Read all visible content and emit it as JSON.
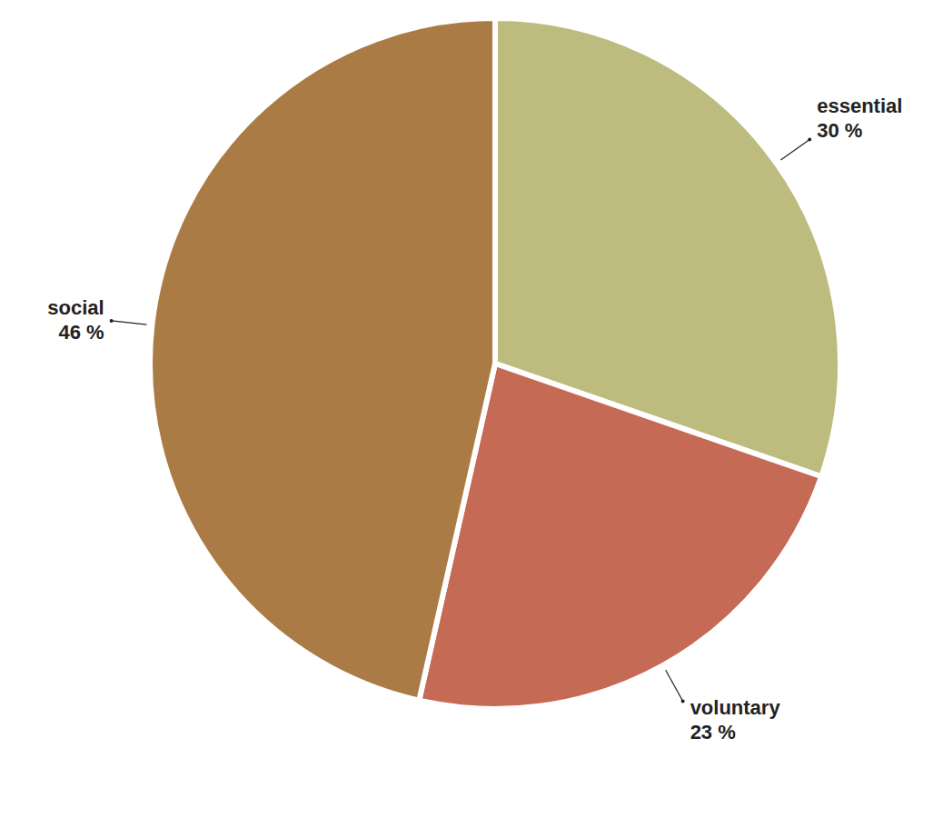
{
  "chart_data": {
    "type": "pie",
    "categories": [
      "essential",
      "voluntary",
      "social"
    ],
    "values": [
      30,
      23,
      46
    ],
    "value_labels": [
      "30 %",
      "23 %",
      "46 %"
    ],
    "colors": [
      "#bdbb7e",
      "#c46a55",
      "#aa7b45"
    ],
    "data_labels": true
  }
}
